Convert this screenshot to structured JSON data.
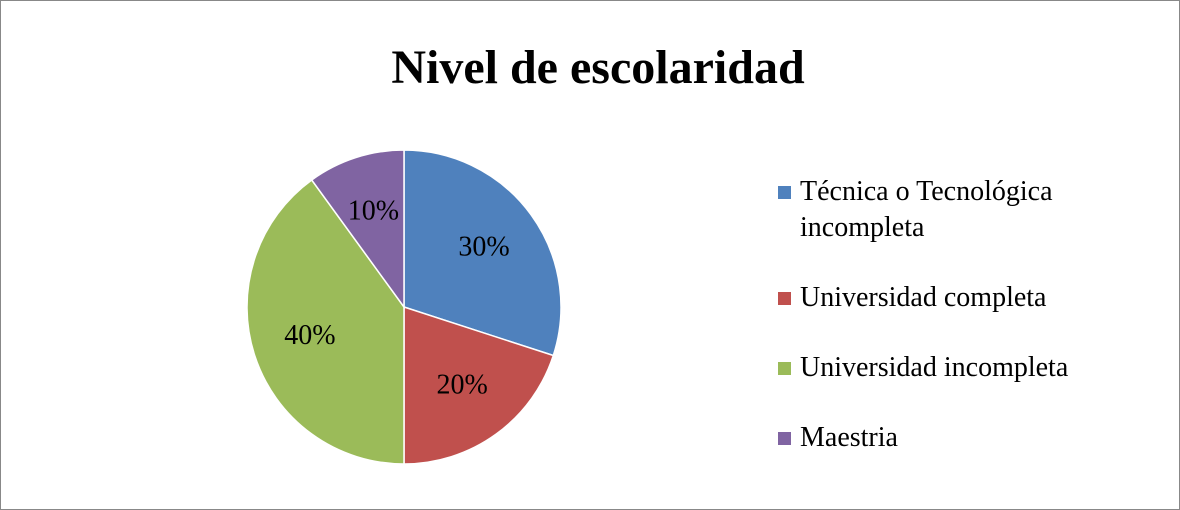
{
  "chart_data": {
    "type": "pie",
    "title": "Nivel de escolaridad",
    "categories": [
      "Técnica o Tecnológica incompleta",
      "Universidad completa",
      "Universidad incompleta",
      "Maestria"
    ],
    "values": [
      30,
      20,
      40,
      10
    ],
    "value_labels": [
      "30%",
      "20%",
      "40%",
      "10%"
    ],
    "colors": [
      "#4f81bd",
      "#c0504d",
      "#9bbb59",
      "#8064a2"
    ]
  }
}
